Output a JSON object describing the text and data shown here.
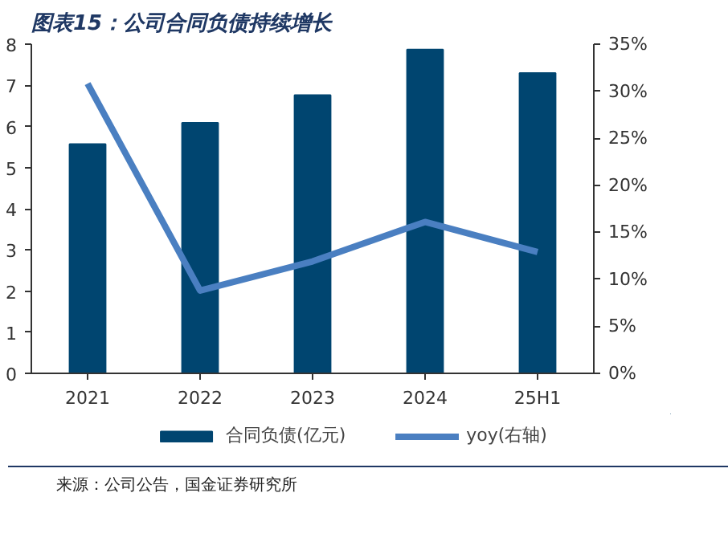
{
  "chart_data": {
    "type": "bar",
    "title": "图表15：公司合同负债持续增长",
    "categories": [
      "2021",
      "2022",
      "2023",
      "2024",
      "25H1"
    ],
    "series": [
      {
        "name": "合同负债(亿元)",
        "color": "#004570",
        "values": [
          5.57,
          6.09,
          6.76,
          7.87,
          7.3
        ]
      },
      {
        "name": "yoy(右轴)",
        "type": "line",
        "axis": "y2",
        "color": "#4a7fc1",
        "values": [
          30.8,
          8.8,
          11.9,
          16.1,
          12.9
        ]
      }
    ],
    "ylim": [
      0,
      8
    ],
    "yticks": [
      0,
      1,
      2,
      3,
      4,
      5,
      6,
      7,
      8
    ],
    "y2lim": [
      0,
      35
    ],
    "y2ticks": [
      {
        "value": 0,
        "label": "0%"
      },
      {
        "value": 5,
        "label": "5%"
      },
      {
        "value": 10,
        "label": "10%"
      },
      {
        "value": 15,
        "label": "15%"
      },
      {
        "value": 20,
        "label": "20%"
      },
      {
        "value": 25,
        "label": "25%"
      },
      {
        "value": 30,
        "label": "30%"
      },
      {
        "value": 35,
        "label": "35%"
      }
    ],
    "grid": false,
    "legend": "bottom",
    "line_style": "solid",
    "marker": "none",
    "annotations": [
      "来源：公司公告，国金证券研究所"
    ]
  }
}
